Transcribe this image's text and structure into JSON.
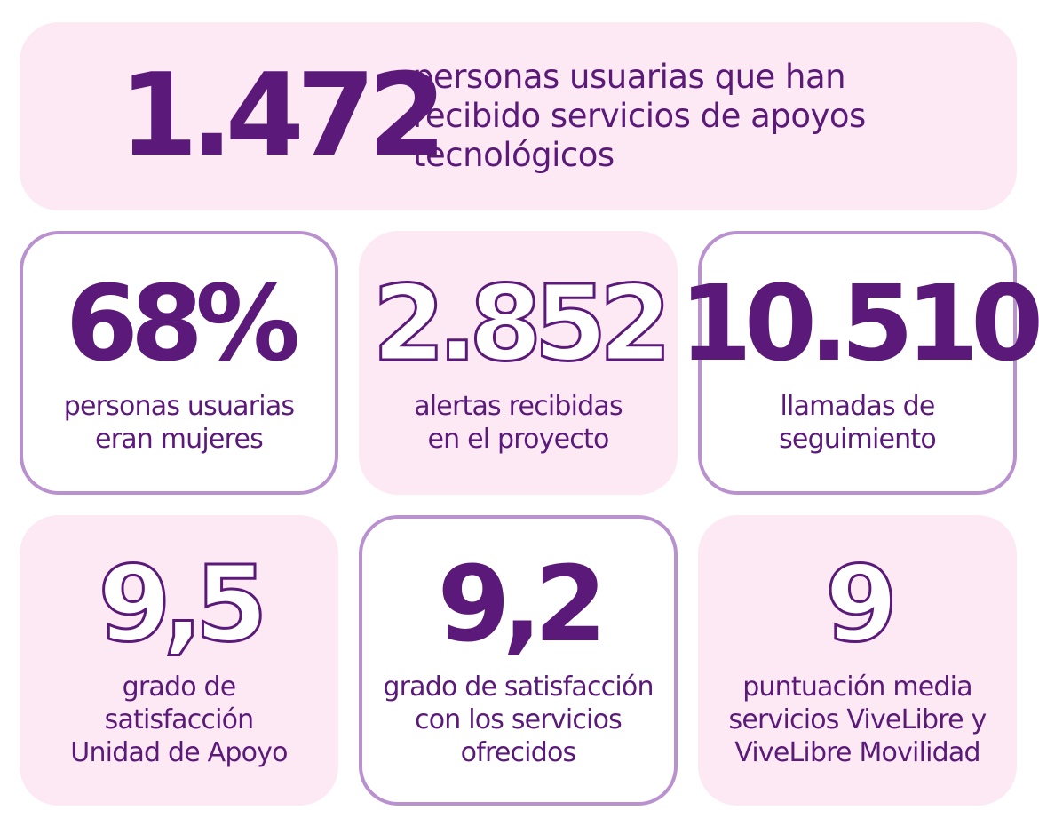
{
  "hero": {
    "number": "1.472",
    "lines": [
      "personas usuarias que han",
      "recibido servicios de apoyos",
      "tecnológicos"
    ]
  },
  "cards": [
    {
      "number": "68%",
      "lines": [
        "personas usuarias",
        "eran mujeres"
      ],
      "card_style": "bordered",
      "number_style": "filled"
    },
    {
      "number": "2.852",
      "lines": [
        "alertas recibidas",
        "en el proyecto"
      ],
      "card_style": "pink",
      "number_style": "outlined"
    },
    {
      "number": "10.510",
      "lines": [
        "llamadas de",
        "seguimiento"
      ],
      "card_style": "bordered",
      "number_style": "filled"
    },
    {
      "number": "9,5",
      "lines": [
        "grado de",
        "satisfacción",
        "Unidad de Apoyo"
      ],
      "card_style": "pink",
      "number_style": "outlined"
    },
    {
      "number": "9,2",
      "lines": [
        "grado de satisfacción",
        "con los servicios",
        "ofrecidos"
      ],
      "card_style": "bordered",
      "number_style": "filled"
    },
    {
      "number": "9",
      "lines": [
        "puntuación media",
        "servicios ViveLibre y",
        "ViveLibre Movilidad"
      ],
      "card_style": "pink",
      "number_style": "outlined"
    }
  ]
}
